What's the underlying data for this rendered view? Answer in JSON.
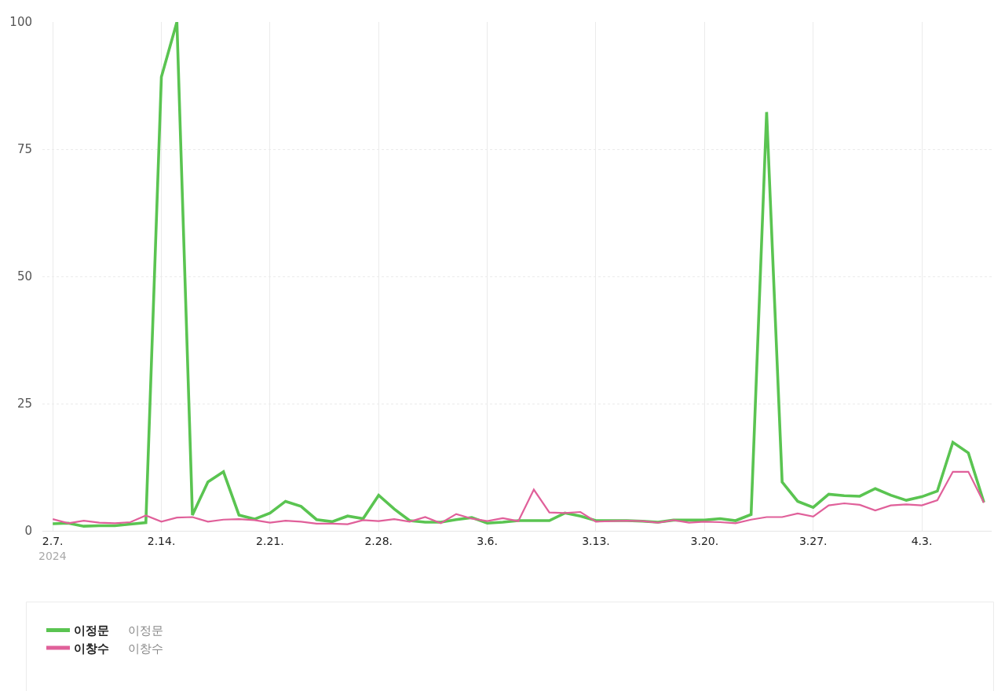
{
  "chart_data": {
    "type": "line",
    "x": [
      "2024-02-07",
      "2024-02-08",
      "2024-02-09",
      "2024-02-10",
      "2024-02-11",
      "2024-02-12",
      "2024-02-13",
      "2024-02-14",
      "2024-02-15",
      "2024-02-16",
      "2024-02-17",
      "2024-02-18",
      "2024-02-19",
      "2024-02-20",
      "2024-02-21",
      "2024-02-22",
      "2024-02-23",
      "2024-02-24",
      "2024-02-25",
      "2024-02-26",
      "2024-02-27",
      "2024-02-28",
      "2024-02-29",
      "2024-03-01",
      "2024-03-02",
      "2024-03-03",
      "2024-03-04",
      "2024-03-05",
      "2024-03-06",
      "2024-03-07",
      "2024-03-08",
      "2024-03-09",
      "2024-03-10",
      "2024-03-11",
      "2024-03-12",
      "2024-03-13",
      "2024-03-14",
      "2024-03-15",
      "2024-03-16",
      "2024-03-17",
      "2024-03-18",
      "2024-03-19",
      "2024-03-20",
      "2024-03-21",
      "2024-03-22",
      "2024-03-23",
      "2024-03-24",
      "2024-03-25",
      "2024-03-26",
      "2024-03-27",
      "2024-03-28",
      "2024-03-29",
      "2024-03-30",
      "2024-03-31",
      "2024-04-01",
      "2024-04-02",
      "2024-04-03",
      "2024-04-04",
      "2024-04-05",
      "2024-04-06",
      "2024-04-07"
    ],
    "series": [
      {
        "name": "이정문",
        "color": "#5ac451",
        "values": [
          1.4,
          1.5,
          0.9,
          1.0,
          1.0,
          1.3,
          1.6,
          89.2,
          100,
          3.1,
          9.6,
          11.6,
          3.1,
          2.3,
          3.5,
          5.8,
          4.8,
          2.2,
          1.8,
          2.9,
          2.4,
          7.0,
          4.3,
          2.0,
          1.7,
          1.7,
          2.2,
          2.6,
          1.5,
          1.7,
          2.0,
          2.0,
          2.0,
          3.5,
          2.9,
          2.0,
          2.0,
          2.0,
          1.9,
          1.7,
          2.1,
          2.1,
          2.1,
          2.4,
          2.0,
          3.2,
          82.3,
          9.6,
          5.8,
          4.6,
          7.2,
          6.9,
          6.8,
          8.3,
          7.0,
          6.0,
          6.7,
          7.8,
          17.4,
          15.3,
          5.6
        ]
      },
      {
        "name": "이창수",
        "color": "#e0609a",
        "values": [
          2.3,
          1.5,
          2.0,
          1.6,
          1.5,
          1.7,
          3.0,
          1.8,
          2.6,
          2.7,
          1.8,
          2.2,
          2.3,
          2.1,
          1.6,
          2.0,
          1.8,
          1.4,
          1.4,
          1.3,
          2.1,
          1.9,
          2.3,
          1.8,
          2.7,
          1.5,
          3.3,
          2.4,
          1.9,
          2.5,
          1.9,
          8.1,
          3.6,
          3.5,
          3.7,
          1.8,
          1.9,
          2.0,
          1.9,
          1.6,
          2.1,
          1.6,
          1.8,
          1.7,
          1.5,
          2.2,
          2.7,
          2.7,
          3.4,
          2.8,
          5.0,
          5.4,
          5.1,
          4.0,
          5.0,
          5.2,
          5.0,
          6.0,
          11.6,
          11.6,
          5.5
        ]
      }
    ],
    "xlim": [
      "2024-02-06T08:00",
      "2024-04-07T12:00"
    ],
    "xticks": [
      {
        "value": "2024-02-07",
        "label": "2.7."
      },
      {
        "value": "2024-02-14",
        "label": "2.14."
      },
      {
        "value": "2024-02-21",
        "label": "2.21."
      },
      {
        "value": "2024-02-28",
        "label": "2.28."
      },
      {
        "value": "2024-03-06",
        "label": "3.6."
      },
      {
        "value": "2024-03-13",
        "label": "3.13."
      },
      {
        "value": "2024-03-20",
        "label": "3.20."
      },
      {
        "value": "2024-03-27",
        "label": "3.27."
      },
      {
        "value": "2024-04-03",
        "label": "4.3."
      }
    ],
    "ylim": [
      0,
      100
    ],
    "yticks": [
      0,
      25,
      50,
      75,
      100
    ],
    "annotations": [
      "2024"
    ],
    "grid": true,
    "legend": "bottom left",
    "marker": "none",
    "line_style": "solid"
  }
}
